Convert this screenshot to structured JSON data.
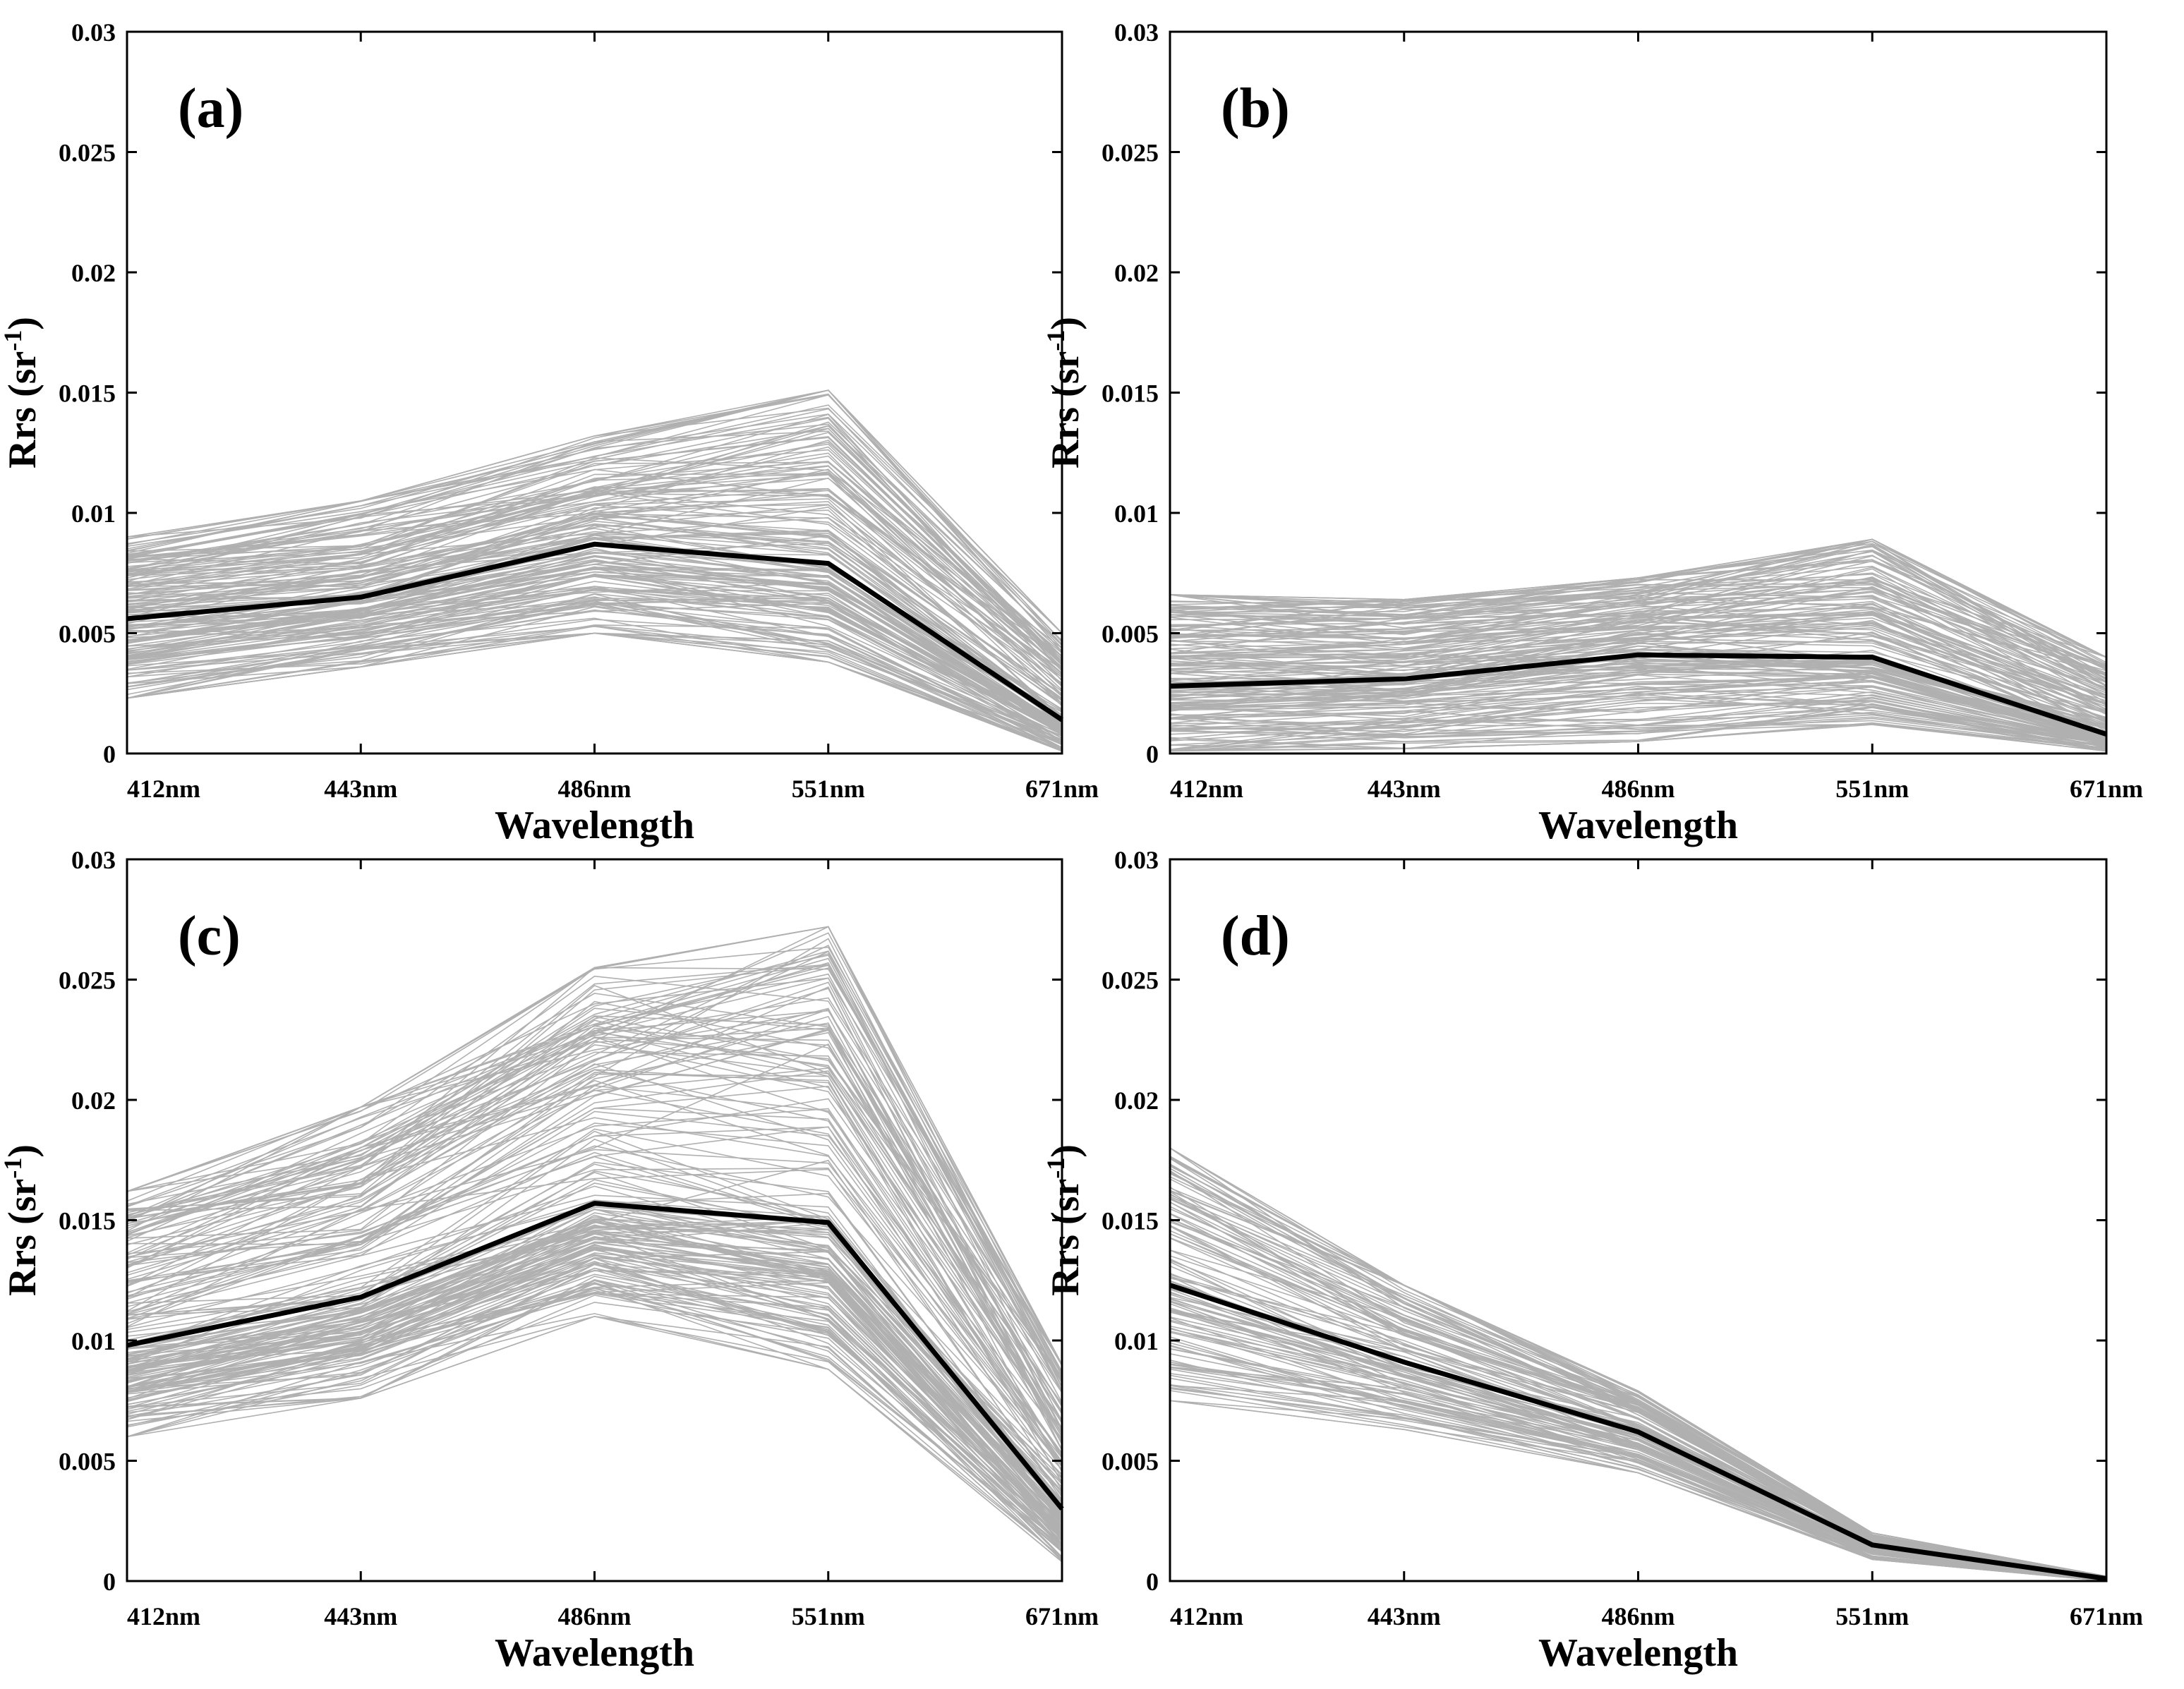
{
  "figure": {
    "sample_color": "#b0b0b0",
    "mean_color": "#000000",
    "axis_color": "#000000"
  },
  "chart_data": [
    {
      "type": "line",
      "panel_label": "(a)",
      "xlabel": "Wavelength",
      "ylabel": "Rrs (sr",
      "ylabel_superscript": "-1",
      "ylabel_close": ")",
      "categories": [
        "412nm",
        "443nm",
        "486nm",
        "551nm",
        "671nm"
      ],
      "ylim": [
        0,
        0.03
      ],
      "yticks": [
        0,
        0.005,
        0.01,
        0.015,
        0.02,
        0.025,
        0.03
      ],
      "ytick_labels": [
        "0",
        "0.005",
        "0.01",
        "0.015",
        "0.02",
        "0.025",
        "0.03"
      ],
      "mean": [
        0.0056,
        0.0065,
        0.0087,
        0.0079,
        0.0014
      ],
      "envelope_min": [
        0.0023,
        0.0036,
        0.005,
        0.0038,
        0.0001
      ],
      "envelope_max": [
        0.009,
        0.0105,
        0.0132,
        0.0151,
        0.005
      ],
      "sample_count": 170,
      "seed": 11
    },
    {
      "type": "line",
      "panel_label": "(b)",
      "xlabel": "Wavelength",
      "ylabel": "Rrs (sr",
      "ylabel_superscript": "-1",
      "ylabel_close": ")",
      "categories": [
        "412nm",
        "443nm",
        "486nm",
        "551nm",
        "671nm"
      ],
      "ylim": [
        0,
        0.03
      ],
      "yticks": [
        0,
        0.005,
        0.01,
        0.015,
        0.02,
        0.025,
        0.03
      ],
      "ytick_labels": [
        "0",
        "0.005",
        "0.01",
        "0.015",
        "0.02",
        "0.025",
        "0.03"
      ],
      "mean": [
        0.0028,
        0.0031,
        0.0041,
        0.004,
        0.0008
      ],
      "envelope_min": [
        0.0001,
        0.0002,
        0.0005,
        0.0012,
        0.0001
      ],
      "envelope_max": [
        0.0066,
        0.0064,
        0.0073,
        0.0089,
        0.004
      ],
      "sample_count": 170,
      "seed": 23
    },
    {
      "type": "line",
      "panel_label": "(c)",
      "xlabel": "Wavelength",
      "ylabel": "Rrs (sr",
      "ylabel_superscript": "-1",
      "ylabel_close": ")",
      "categories": [
        "412nm",
        "443nm",
        "486nm",
        "551nm",
        "671nm"
      ],
      "ylim": [
        0,
        0.03
      ],
      "yticks": [
        0,
        0.005,
        0.01,
        0.015,
        0.02,
        0.025,
        0.03
      ],
      "ytick_labels": [
        "0",
        "0.005",
        "0.01",
        "0.015",
        "0.02",
        "0.025",
        "0.03"
      ],
      "mean": [
        0.0098,
        0.0118,
        0.0157,
        0.0149,
        0.003
      ],
      "envelope_min": [
        0.006,
        0.0076,
        0.011,
        0.0088,
        0.0008
      ],
      "envelope_max": [
        0.0162,
        0.0197,
        0.0255,
        0.0272,
        0.009
      ],
      "sample_count": 190,
      "seed": 37
    },
    {
      "type": "line",
      "panel_label": "(d)",
      "xlabel": "Wavelength",
      "ylabel": "Rrs (sr",
      "ylabel_superscript": "-1",
      "ylabel_close": ")",
      "categories": [
        "412nm",
        "443nm",
        "486nm",
        "551nm",
        "671nm"
      ],
      "ylim": [
        0,
        0.03
      ],
      "yticks": [
        0,
        0.005,
        0.01,
        0.015,
        0.02,
        0.025,
        0.03
      ],
      "ytick_labels": [
        "0",
        "0.005",
        "0.01",
        "0.015",
        "0.02",
        "0.025",
        "0.03"
      ],
      "mean": [
        0.0123,
        0.0091,
        0.0062,
        0.0015,
        0.0001
      ],
      "envelope_min": [
        0.0075,
        0.0063,
        0.0045,
        0.0009,
        0
      ],
      "envelope_max": [
        0.018,
        0.0123,
        0.0079,
        0.002,
        0.0002
      ],
      "sample_count": 120,
      "seed": 53
    }
  ]
}
